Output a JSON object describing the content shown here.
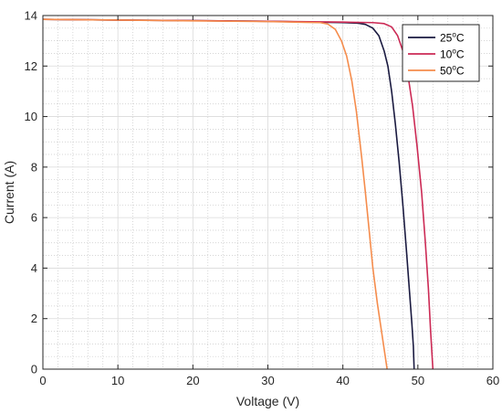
{
  "chart_data": {
    "type": "line",
    "title": "",
    "xlabel": "Voltage (V)",
    "ylabel": "Current (A)",
    "xlim": [
      0,
      60
    ],
    "ylim": [
      0,
      14
    ],
    "xticks": [
      0,
      10,
      20,
      30,
      40,
      50,
      60
    ],
    "yticks": [
      0,
      2,
      4,
      6,
      8,
      10,
      12,
      14
    ],
    "grid": "major and minor (dotted)",
    "legend_position": "top-right",
    "series": [
      {
        "name": "25oC",
        "label_main": "25",
        "label_sup": "o",
        "label_unit": "C",
        "color": "#1a1a40",
        "points": [
          [
            0,
            13.85
          ],
          [
            10,
            13.82
          ],
          [
            20,
            13.8
          ],
          [
            30,
            13.77
          ],
          [
            36,
            13.74
          ],
          [
            40,
            13.72
          ],
          [
            42,
            13.7
          ],
          [
            43,
            13.65
          ],
          [
            44,
            13.5
          ],
          [
            44.8,
            13.2
          ],
          [
            45.5,
            12.6
          ],
          [
            46,
            12
          ],
          [
            46.5,
            11
          ],
          [
            47,
            9.7
          ],
          [
            47.5,
            8.2
          ],
          [
            48,
            6.5
          ],
          [
            48.5,
            4.6
          ],
          [
            49,
            2.6
          ],
          [
            49.2,
            1.8
          ],
          [
            49.4,
            0.9
          ],
          [
            49.5,
            0
          ]
        ]
      },
      {
        "name": "10oC",
        "label_main": "10",
        "label_sup": "o",
        "label_unit": "C",
        "color": "#cc2a55",
        "points": [
          [
            0,
            13.85
          ],
          [
            10,
            13.82
          ],
          [
            20,
            13.8
          ],
          [
            30,
            13.77
          ],
          [
            40,
            13.74
          ],
          [
            44,
            13.72
          ],
          [
            45.5,
            13.68
          ],
          [
            46.5,
            13.55
          ],
          [
            47.3,
            13.2
          ],
          [
            48,
            12.6
          ],
          [
            48.7,
            11.6
          ],
          [
            49.3,
            10.4
          ],
          [
            49.9,
            8.8
          ],
          [
            50.5,
            7
          ],
          [
            51,
            5
          ],
          [
            51.4,
            3.2
          ],
          [
            51.7,
            1.5
          ],
          [
            51.9,
            0.5
          ],
          [
            52,
            0
          ]
        ]
      },
      {
        "name": "50oC",
        "label_main": "50",
        "label_sup": "o",
        "label_unit": "C",
        "color": "#f58c4c",
        "points": [
          [
            0,
            13.85
          ],
          [
            10,
            13.82
          ],
          [
            20,
            13.79
          ],
          [
            30,
            13.76
          ],
          [
            35,
            13.73
          ],
          [
            37,
            13.72
          ],
          [
            38,
            13.66
          ],
          [
            39,
            13.45
          ],
          [
            39.8,
            13
          ],
          [
            40.5,
            12.4
          ],
          [
            41.2,
            11.4
          ],
          [
            41.8,
            10.2
          ],
          [
            42.5,
            8.4
          ],
          [
            43,
            7
          ],
          [
            43.5,
            5.5
          ],
          [
            44,
            4
          ],
          [
            44.6,
            2.6
          ],
          [
            45.2,
            1.4
          ],
          [
            45.6,
            0.6
          ],
          [
            45.9,
            0
          ]
        ]
      }
    ]
  }
}
